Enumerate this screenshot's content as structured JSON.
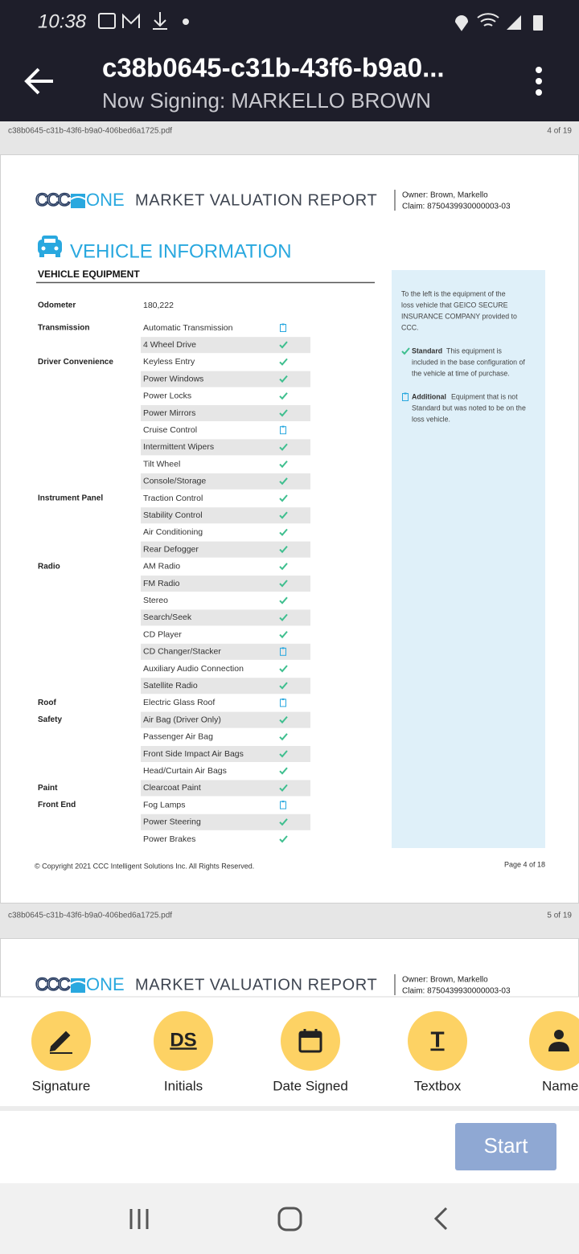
{
  "status_bar": {
    "time": "10:38"
  },
  "app_bar": {
    "title": "c38b0645-c31b-43f6-b9a0...",
    "subtitle": "Now Signing: MARKELLO BROWN"
  },
  "document": {
    "pages": [
      {
        "file": "c38b0645-c31b-43f6-b9a0-406bed6a1725.pdf",
        "page_number": "4 of 19",
        "logo": {
          "left": "CCC",
          "right": "ONE"
        },
        "report_title": "MARKET VALUATION REPORT",
        "owner": "Owner: Brown, Markello",
        "claim": "Claim: 8750439930000003-03",
        "section_title": "VEHICLE INFORMATION",
        "subsection_title": "VEHICLE EQUIPMENT",
        "odometer": {
          "label": "Odometer",
          "value": "180,222"
        },
        "equipment": [
          {
            "label": "Transmission",
            "items": [
              {
                "name": "Automatic Transmission",
                "type": "additional"
              },
              {
                "name": "4 Wheel Drive",
                "type": "standard"
              }
            ]
          },
          {
            "label": "Driver Convenience",
            "items": [
              {
                "name": "Keyless Entry",
                "type": "standard"
              },
              {
                "name": "Power Windows",
                "type": "standard"
              },
              {
                "name": "Power Locks",
                "type": "standard"
              },
              {
                "name": "Power Mirrors",
                "type": "standard"
              },
              {
                "name": "Cruise Control",
                "type": "additional"
              },
              {
                "name": "Intermittent Wipers",
                "type": "standard"
              },
              {
                "name": "Tilt Wheel",
                "type": "standard"
              },
              {
                "name": "Console/Storage",
                "type": "standard"
              }
            ]
          },
          {
            "label": "Instrument Panel",
            "items": [
              {
                "name": "Traction Control",
                "type": "standard"
              },
              {
                "name": "Stability Control",
                "type": "standard"
              },
              {
                "name": "Air Conditioning",
                "type": "standard"
              },
              {
                "name": "Rear Defogger",
                "type": "standard"
              }
            ]
          },
          {
            "label": "Radio",
            "items": [
              {
                "name": "AM Radio",
                "type": "standard"
              },
              {
                "name": "FM Radio",
                "type": "standard"
              },
              {
                "name": "Stereo",
                "type": "standard"
              },
              {
                "name": "Search/Seek",
                "type": "standard"
              },
              {
                "name": "CD Player",
                "type": "standard"
              },
              {
                "name": "CD Changer/Stacker",
                "type": "additional"
              },
              {
                "name": "Auxiliary Audio Connection",
                "type": "standard"
              },
              {
                "name": "Satellite Radio",
                "type": "standard"
              }
            ]
          },
          {
            "label": "Roof",
            "items": [
              {
                "name": "Electric Glass Roof",
                "type": "additional"
              }
            ]
          },
          {
            "label": "Safety",
            "items": [
              {
                "name": "Air Bag (Driver Only)",
                "type": "standard"
              },
              {
                "name": "Passenger Air Bag",
                "type": "standard"
              },
              {
                "name": "Front Side Impact Air Bags",
                "type": "standard"
              },
              {
                "name": "Head/Curtain Air Bags",
                "type": "standard"
              }
            ]
          },
          {
            "label": "Paint",
            "items": [
              {
                "name": "Clearcoat Paint",
                "type": "standard"
              }
            ]
          },
          {
            "label": "Front End",
            "items": [
              {
                "name": "Fog Lamps",
                "type": "additional"
              },
              {
                "name": "Power Steering",
                "type": "standard"
              },
              {
                "name": "Power Brakes",
                "type": "standard"
              }
            ]
          }
        ],
        "note": {
          "lines": [
            "To the left is the equipment of the",
            "loss vehicle that GEICO SECURE",
            "INSURANCE COMPANY provided to",
            "CCC."
          ],
          "standard": {
            "term": "Standard",
            "lines": [
              "This equipment is",
              "included in the base configuration of",
              "the vehicle at time of purchase."
            ]
          },
          "additional": {
            "term": "Additional",
            "lines": [
              "Equipment that is not",
              "Standard but was noted to be on the",
              "loss vehicle."
            ]
          }
        },
        "footer": {
          "copyright": "© Copyright 2021 CCC Intelligent Solutions Inc. All Rights Reserved.",
          "page": "Page 4 of 18"
        }
      },
      {
        "file": "c38b0645-c31b-43f6-b9a0-406bed6a1725.pdf",
        "page_number": "5 of 19",
        "logo": {
          "left": "CCC",
          "right": "ONE"
        },
        "report_title": "MARKET VALUATION REPORT",
        "owner": "Owner: Brown, Markello",
        "claim": "Claim: 8750439930000003-03"
      }
    ]
  },
  "toolbar": {
    "tools": [
      {
        "label": "Signature"
      },
      {
        "label": "Initials",
        "icon_text": "DS"
      },
      {
        "label": "Date Signed"
      },
      {
        "label": "Textbox",
        "icon_text": "T"
      },
      {
        "label": "Name"
      }
    ],
    "start_button": "Start"
  }
}
